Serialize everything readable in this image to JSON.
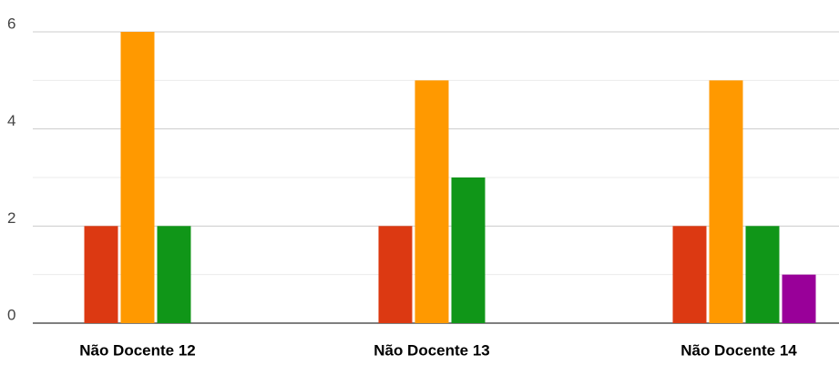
{
  "chart_data": {
    "type": "bar",
    "categories": [
      "Não Docente 12",
      "Não Docente 13",
      "Não Docente 14"
    ],
    "series": [
      {
        "color": "#3366cc",
        "values": [
          0,
          0,
          0
        ]
      },
      {
        "color": "#dc3912",
        "values": [
          2,
          2,
          2
        ]
      },
      {
        "color": "#ff9900",
        "values": [
          6,
          5,
          5
        ]
      },
      {
        "color": "#109618",
        "values": [
          2,
          3,
          2
        ]
      },
      {
        "color": "#990099",
        "values": [
          0,
          0,
          1
        ]
      }
    ],
    "ylim": [
      0,
      6
    ],
    "yticks": [
      0,
      2,
      4,
      6
    ],
    "minor_yticks": [
      1,
      3,
      5
    ],
    "grid": true
  }
}
